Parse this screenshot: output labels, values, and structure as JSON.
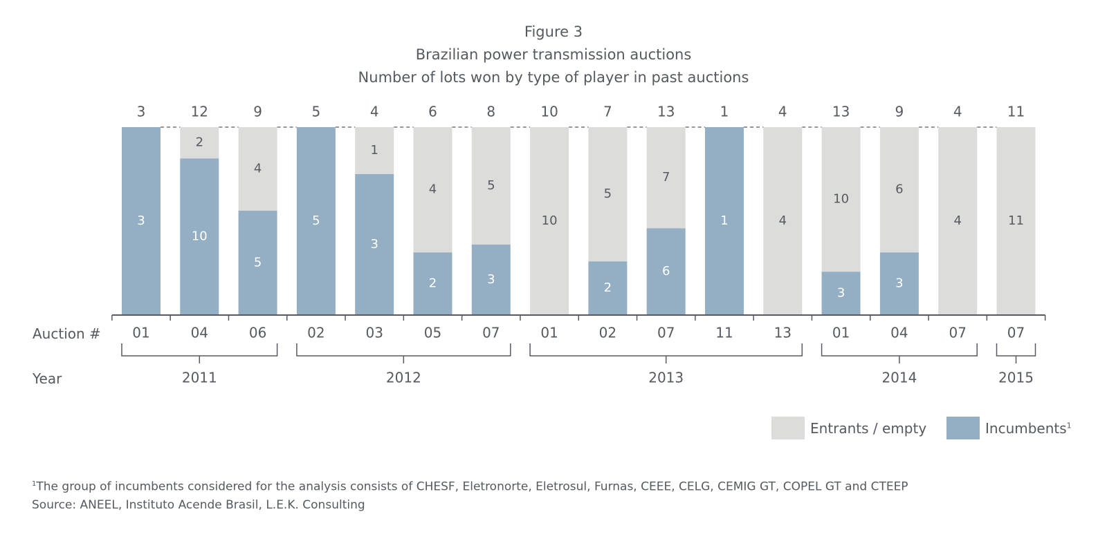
{
  "header": {
    "figure": "Figure 3",
    "title": "Brazilian power transmission auctions",
    "subtitle": "Number of lots won by type of player in past auctions"
  },
  "axis_labels": {
    "auction": "Auction #",
    "year": "Year"
  },
  "legend": {
    "entrants": "Entrants / empty",
    "incumbents": "Incumbents",
    "incumbents_sup": "1"
  },
  "footnote": {
    "sup": "1",
    "text": "The group of incumbents considered for the analysis consists of CHESF, Eletronorte, Eletrosul, Furnas, CEEE, CELG, CEMIG GT, COPEL GT and CTEEP",
    "source": "Source: ANEEL, Instituto Acende Brasil, L.E.K. Consulting"
  },
  "colors": {
    "incumbents": "#94afc3",
    "entrants": "#dcdcdb",
    "text": "#555a60",
    "axis": "#555a60"
  },
  "chart_data": {
    "type": "bar",
    "stacked": true,
    "normalized": true,
    "categories": [
      "01",
      "04",
      "06",
      "02",
      "03",
      "05",
      "07",
      "01",
      "02",
      "07",
      "11",
      "13",
      "01",
      "04",
      "07",
      "07"
    ],
    "years": [
      {
        "label": "2011",
        "count": 3
      },
      {
        "label": "2012",
        "count": 4
      },
      {
        "label": "2013",
        "count": 5
      },
      {
        "label": "2014",
        "count": 3
      },
      {
        "label": "2015",
        "count": 1
      }
    ],
    "totals": [
      3,
      12,
      9,
      5,
      4,
      6,
      8,
      10,
      7,
      13,
      1,
      4,
      13,
      9,
      4,
      11
    ],
    "series": [
      {
        "name": "Incumbents",
        "values": [
          3,
          10,
          5,
          5,
          3,
          2,
          3,
          0,
          2,
          6,
          1,
          0,
          3,
          3,
          0,
          0
        ]
      },
      {
        "name": "Entrants / empty",
        "values": [
          0,
          2,
          4,
          0,
          1,
          4,
          5,
          10,
          5,
          7,
          0,
          4,
          10,
          6,
          4,
          11
        ]
      }
    ]
  }
}
